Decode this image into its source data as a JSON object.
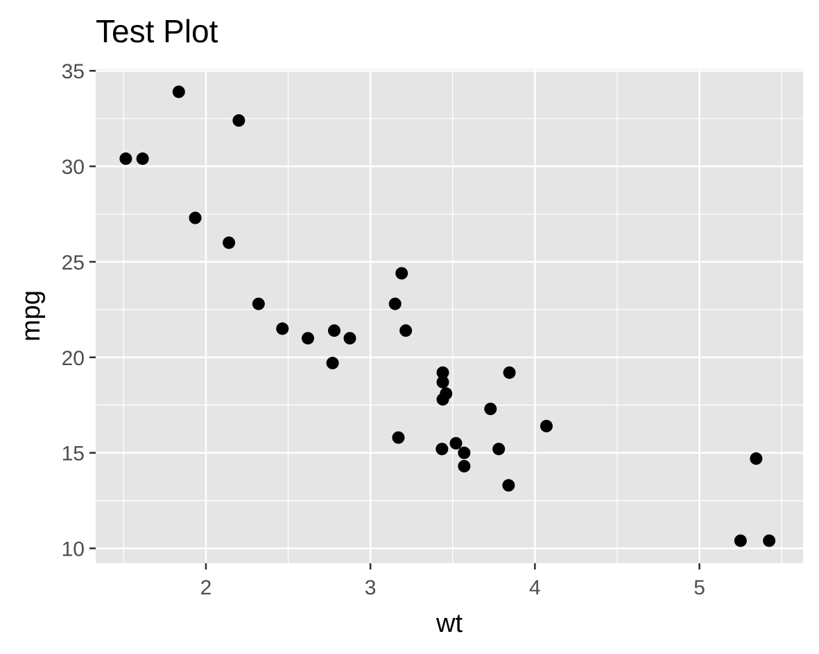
{
  "chart_data": {
    "type": "scatter",
    "title": "Test Plot",
    "xlabel": "wt",
    "ylabel": "mpg",
    "xlim": [
      1.33,
      5.63
    ],
    "ylim": [
      9.22,
      35.08
    ],
    "x_ticks": [
      2,
      3,
      4,
      5
    ],
    "y_ticks": [
      10,
      15,
      20,
      25,
      30,
      35
    ],
    "x_minor": [
      1.5,
      2.5,
      3.5,
      4.5,
      5.5
    ],
    "y_minor": [
      12.5,
      17.5,
      22.5,
      27.5,
      32.5
    ],
    "grid": true,
    "legend": "none",
    "colors": {
      "panel": "#e5e5e5",
      "point": "#000000",
      "grid": "#ffffff",
      "tick_label": "#4d4d4d"
    },
    "points": [
      {
        "x": 2.62,
        "y": 21.0
      },
      {
        "x": 2.875,
        "y": 21.0
      },
      {
        "x": 2.32,
        "y": 22.8
      },
      {
        "x": 3.215,
        "y": 21.4
      },
      {
        "x": 3.44,
        "y": 18.7
      },
      {
        "x": 3.46,
        "y": 18.1
      },
      {
        "x": 3.57,
        "y": 14.3
      },
      {
        "x": 3.19,
        "y": 24.4
      },
      {
        "x": 3.15,
        "y": 22.8
      },
      {
        "x": 3.44,
        "y": 19.2
      },
      {
        "x": 3.44,
        "y": 17.8
      },
      {
        "x": 4.07,
        "y": 16.4
      },
      {
        "x": 3.73,
        "y": 17.3
      },
      {
        "x": 3.78,
        "y": 15.2
      },
      {
        "x": 5.25,
        "y": 10.4
      },
      {
        "x": 5.424,
        "y": 10.4
      },
      {
        "x": 5.345,
        "y": 14.7
      },
      {
        "x": 2.2,
        "y": 32.4
      },
      {
        "x": 1.615,
        "y": 30.4
      },
      {
        "x": 1.835,
        "y": 33.9
      },
      {
        "x": 2.465,
        "y": 21.5
      },
      {
        "x": 3.52,
        "y": 15.5
      },
      {
        "x": 3.435,
        "y": 15.2
      },
      {
        "x": 3.84,
        "y": 13.3
      },
      {
        "x": 3.845,
        "y": 19.2
      },
      {
        "x": 1.935,
        "y": 27.3
      },
      {
        "x": 2.14,
        "y": 26.0
      },
      {
        "x": 1.513,
        "y": 30.4
      },
      {
        "x": 3.17,
        "y": 15.8
      },
      {
        "x": 2.77,
        "y": 19.7
      },
      {
        "x": 3.57,
        "y": 15.0
      },
      {
        "x": 2.78,
        "y": 21.4
      }
    ]
  }
}
